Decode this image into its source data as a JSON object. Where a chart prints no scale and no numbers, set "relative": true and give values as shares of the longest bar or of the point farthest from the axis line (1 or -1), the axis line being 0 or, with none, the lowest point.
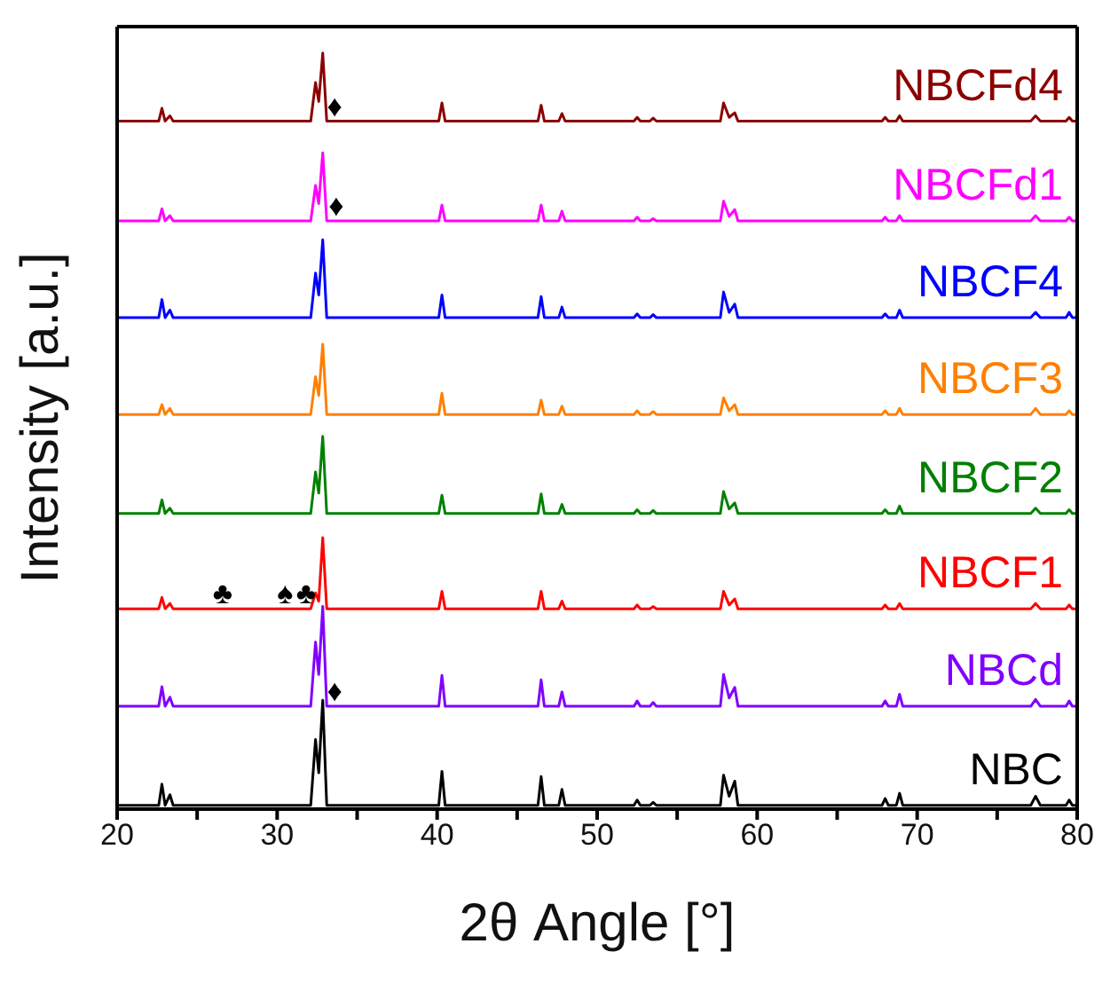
{
  "chart_data": {
    "type": "line",
    "relative": true,
    "xlabel": "2θ Angle [°]",
    "ylabel": "Intensity [a.u.]",
    "legend": false,
    "grid": false,
    "xlim": [
      20,
      80
    ],
    "xticks": [
      20,
      {
        "value": 25,
        "label": null
      },
      30,
      {
        "value": 35,
        "label": null
      },
      40,
      {
        "value": 45,
        "label": null
      },
      50,
      {
        "value": 55,
        "label": null
      },
      60,
      {
        "value": 65,
        "label": null
      },
      70,
      {
        "value": 75,
        "label": null
      },
      80
    ],
    "x": [
      20,
      22.6,
      22.8,
      23.0,
      23.3,
      23.5,
      32.1,
      32.4,
      32.6,
      32.85,
      33.1,
      40.1,
      40.3,
      40.5,
      46.3,
      46.5,
      46.7,
      47.6,
      47.8,
      48.0,
      52.3,
      52.5,
      52.7,
      53.3,
      53.5,
      53.7,
      57.7,
      57.9,
      58.25,
      58.6,
      58.8,
      67.8,
      68.0,
      68.2,
      68.7,
      68.9,
      69.1,
      77.1,
      77.4,
      77.7,
      79.3,
      79.5,
      79.7,
      80
    ],
    "series": [
      {
        "name": "NBC",
        "color": "#000000",
        "values": [
          0.005,
          0.005,
          0.033,
          0.005,
          0.019,
          0.005,
          0.005,
          0.092,
          0.048,
          0.144,
          0.005,
          0.005,
          0.05,
          0.005,
          0.005,
          0.043,
          0.005,
          0.005,
          0.026,
          0.005,
          0.005,
          0.012,
          0.005,
          0.005,
          0.009,
          0.005,
          0.005,
          0.045,
          0.017,
          0.037,
          0.005,
          0.005,
          0.014,
          0.005,
          0.005,
          0.021,
          0.005,
          0.005,
          0.017,
          0.005,
          0.005,
          0.012,
          0.005,
          0.005
        ]
      },
      {
        "name": "NBCd",
        "color": "#8000ff",
        "values": [
          0.136,
          0.136,
          0.162,
          0.136,
          0.148,
          0.136,
          0.136,
          0.221,
          0.178,
          0.268,
          0.136,
          0.136,
          0.177,
          0.136,
          0.136,
          0.171,
          0.136,
          0.136,
          0.155,
          0.136,
          0.136,
          0.143,
          0.136,
          0.136,
          0.141,
          0.136,
          0.136,
          0.178,
          0.147,
          0.161,
          0.136,
          0.136,
          0.143,
          0.136,
          0.136,
          0.152,
          0.136,
          0.136,
          0.145,
          0.136,
          0.136,
          0.143,
          0.136,
          0.136
        ]
      },
      {
        "name": "NBCF1",
        "color": "#ff0000",
        "values": [
          0.265,
          0.265,
          0.28,
          0.265,
          0.272,
          0.265,
          0.265,
          0.286,
          0.275,
          0.359,
          0.265,
          0.265,
          0.288,
          0.265,
          0.265,
          0.288,
          0.265,
          0.265,
          0.275,
          0.265,
          0.265,
          0.27,
          0.265,
          0.265,
          0.268,
          0.265,
          0.265,
          0.288,
          0.27,
          0.278,
          0.265,
          0.265,
          0.27,
          0.265,
          0.265,
          0.272,
          0.265,
          0.265,
          0.272,
          0.265,
          0.265,
          0.27,
          0.265,
          0.265
        ]
      },
      {
        "name": "NBCF2",
        "color": "#008000",
        "values": [
          0.391,
          0.391,
          0.409,
          0.391,
          0.398,
          0.391,
          0.391,
          0.446,
          0.418,
          0.493,
          0.391,
          0.391,
          0.415,
          0.391,
          0.391,
          0.417,
          0.391,
          0.391,
          0.403,
          0.391,
          0.391,
          0.396,
          0.391,
          0.391,
          0.395,
          0.391,
          0.391,
          0.42,
          0.397,
          0.405,
          0.391,
          0.391,
          0.396,
          0.391,
          0.391,
          0.401,
          0.391,
          0.391,
          0.398,
          0.391,
          0.391,
          0.396,
          0.391,
          0.391
        ]
      },
      {
        "name": "NBCF3",
        "color": "#ff8000",
        "values": [
          0.522,
          0.522,
          0.535,
          0.522,
          0.53,
          0.522,
          0.522,
          0.572,
          0.547,
          0.615,
          0.522,
          0.522,
          0.55,
          0.522,
          0.522,
          0.541,
          0.522,
          0.522,
          0.533,
          0.522,
          0.522,
          0.527,
          0.522,
          0.522,
          0.526,
          0.522,
          0.522,
          0.544,
          0.527,
          0.535,
          0.522,
          0.522,
          0.527,
          0.522,
          0.522,
          0.53,
          0.522,
          0.522,
          0.53,
          0.522,
          0.522,
          0.527,
          0.522,
          0.522
        ]
      },
      {
        "name": "NBCF4",
        "color": "#0000ff",
        "values": [
          0.65,
          0.65,
          0.674,
          0.65,
          0.66,
          0.65,
          0.65,
          0.709,
          0.68,
          0.753,
          0.65,
          0.65,
          0.68,
          0.65,
          0.65,
          0.678,
          0.65,
          0.65,
          0.664,
          0.65,
          0.65,
          0.655,
          0.65,
          0.65,
          0.654,
          0.65,
          0.65,
          0.684,
          0.657,
          0.668,
          0.65,
          0.65,
          0.655,
          0.65,
          0.65,
          0.66,
          0.65,
          0.65,
          0.657,
          0.65,
          0.65,
          0.657,
          0.65,
          0.65
        ]
      },
      {
        "name": "NBCFd1",
        "color": "#ff00ff",
        "values": [
          0.778,
          0.778,
          0.794,
          0.778,
          0.785,
          0.778,
          0.778,
          0.825,
          0.801,
          0.868,
          0.778,
          0.778,
          0.799,
          0.778,
          0.778,
          0.799,
          0.778,
          0.778,
          0.791,
          0.778,
          0.778,
          0.783,
          0.778,
          0.778,
          0.781,
          0.778,
          0.778,
          0.804,
          0.784,
          0.793,
          0.778,
          0.778,
          0.783,
          0.778,
          0.778,
          0.785,
          0.778,
          0.778,
          0.785,
          0.778,
          0.778,
          0.783,
          0.778,
          0.778
        ]
      },
      {
        "name": "NBCFd4",
        "color": "#8b0000",
        "values": [
          0.91,
          0.91,
          0.927,
          0.91,
          0.917,
          0.91,
          0.91,
          0.961,
          0.936,
          1,
          0.91,
          0.91,
          0.934,
          0.91,
          0.91,
          0.931,
          0.91,
          0.91,
          0.92,
          0.91,
          0.91,
          0.915,
          0.91,
          0.91,
          0.914,
          0.91,
          0.91,
          0.934,
          0.915,
          0.921,
          0.91,
          0.91,
          0.915,
          0.91,
          0.91,
          0.917,
          0.91,
          0.91,
          0.917,
          0.91,
          0.91,
          0.915,
          0.91,
          0.91
        ]
      }
    ],
    "annotations": [
      {
        "text": "♦",
        "x": 33.6,
        "y": 0.91
      },
      {
        "text": "♦",
        "x": 33.7,
        "y": 0.778
      },
      {
        "text": "♦",
        "x": 33.6,
        "y": 0.136
      },
      {
        "text": "♣",
        "x": 26.6,
        "y": 0.265
      },
      {
        "text": "♠",
        "x": 30.5,
        "y": 0.265
      },
      {
        "text": "♣",
        "x": 31.8,
        "y": 0.265
      }
    ]
  }
}
